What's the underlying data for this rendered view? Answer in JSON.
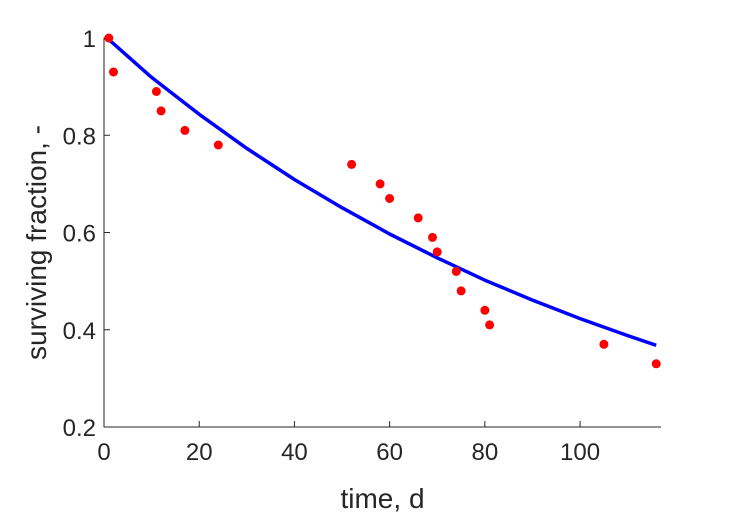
{
  "chart_data": {
    "type": "scatter",
    "title": "",
    "xlabel": "time, d",
    "ylabel": "surviving fraction, -",
    "xlim": [
      0,
      117
    ],
    "ylim": [
      0.2,
      1.0
    ],
    "xticks": [
      0,
      20,
      40,
      60,
      80,
      100
    ],
    "yticks": [
      0.2,
      0.4,
      0.6,
      0.8,
      1.0
    ],
    "xtick_labels": [
      "0",
      "20",
      "40",
      "60",
      "80",
      "100"
    ],
    "ytick_labels": [
      "0.2",
      "0.4",
      "0.6",
      "0.8",
      "1"
    ],
    "grid": false,
    "legend": "none",
    "series": [
      {
        "kind": "points",
        "color": "#ff0000",
        "x": [
          1,
          2,
          11,
          12,
          17,
          24,
          52,
          58,
          60,
          66,
          69,
          70,
          74,
          75,
          80,
          81,
          105,
          116
        ],
        "y": [
          1.0,
          0.93,
          0.89,
          0.85,
          0.81,
          0.78,
          0.74,
          0.7,
          0.67,
          0.63,
          0.59,
          0.56,
          0.52,
          0.48,
          0.44,
          0.41,
          0.37,
          0.33
        ]
      },
      {
        "kind": "fitted-curve",
        "color": "#0000ff",
        "x": [
          1,
          10,
          20,
          30,
          40,
          50,
          60,
          70,
          80,
          90,
          100,
          110,
          116
        ],
        "y": [
          0.997,
          0.919,
          0.843,
          0.773,
          0.709,
          0.651,
          0.597,
          0.548,
          0.502,
          0.461,
          0.423,
          0.388,
          0.368
        ]
      }
    ]
  }
}
